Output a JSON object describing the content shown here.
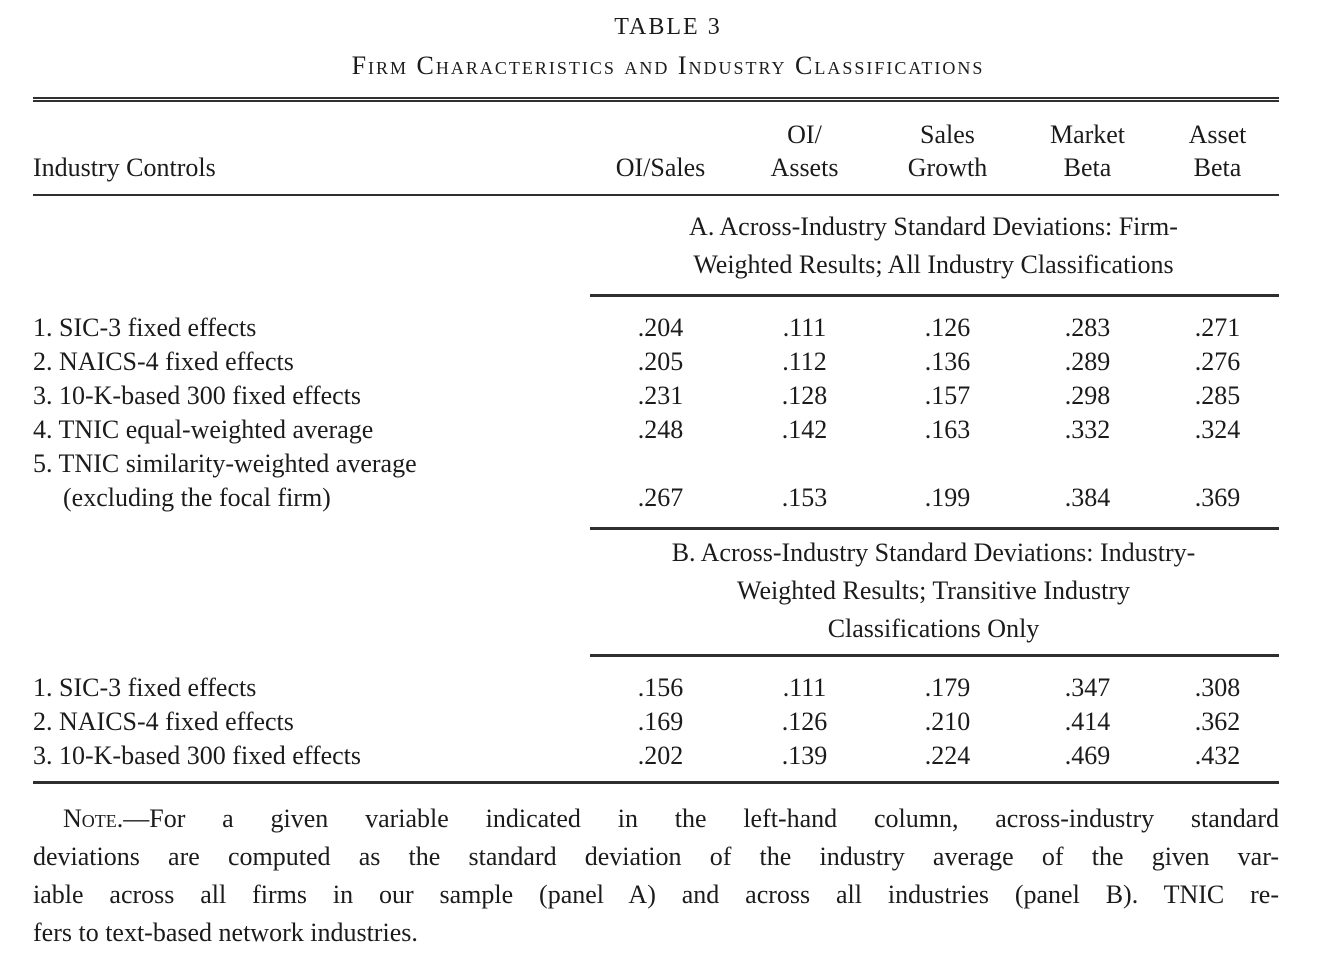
{
  "title": {
    "line1": "TABLE 3",
    "line2": "Firm Characteristics and Industry Classifications"
  },
  "columns": {
    "stub": "Industry Controls",
    "headers": [
      {
        "line1": "",
        "line2": "OI/Sales"
      },
      {
        "line1": "OI/",
        "line2": "Assets"
      },
      {
        "line1": "Sales",
        "line2": "Growth"
      },
      {
        "line1": "Market",
        "line2": "Beta"
      },
      {
        "line1": "Asset",
        "line2": "Beta"
      }
    ]
  },
  "panels": [
    {
      "id": "A",
      "heading_lines": [
        "A. Across-Industry Standard Deviations: Firm-",
        "Weighted Results; All Industry Classifications"
      ],
      "rows": [
        {
          "label": "1. SIC-3 fixed effects",
          "values": [
            ".204",
            ".111",
            ".126",
            ".283",
            ".271"
          ]
        },
        {
          "label": "2. NAICS-4 fixed effects",
          "values": [
            ".205",
            ".112",
            ".136",
            ".289",
            ".276"
          ]
        },
        {
          "label": "3. 10-K-based 300 fixed effects",
          "values": [
            ".231",
            ".128",
            ".157",
            ".298",
            ".285"
          ]
        },
        {
          "label": "4. TNIC equal-weighted average",
          "values": [
            ".248",
            ".142",
            ".163",
            ".332",
            ".324"
          ]
        },
        {
          "label": "5. TNIC similarity-weighted average",
          "label_line2": "(excluding the focal firm)",
          "values": [
            ".267",
            ".153",
            ".199",
            ".384",
            ".369"
          ]
        }
      ]
    },
    {
      "id": "B",
      "heading_lines": [
        "B. Across-Industry Standard Deviations: Industry-",
        "Weighted Results; Transitive Industry",
        "Classifications Only"
      ],
      "rows": [
        {
          "label": "1. SIC-3 fixed effects",
          "values": [
            ".156",
            ".111",
            ".179",
            ".347",
            ".308"
          ]
        },
        {
          "label": "2. NAICS-4 fixed effects",
          "values": [
            ".169",
            ".126",
            ".210",
            ".414",
            ".362"
          ]
        },
        {
          "label": "3. 10-K-based 300 fixed effects",
          "values": [
            ".202",
            ".139",
            ".224",
            ".469",
            ".432"
          ]
        }
      ]
    }
  ],
  "note": {
    "label": "Note.",
    "lines": [
      "—For a given variable indicated in the left-hand column, across-industry standard",
      "deviations are computed as the standard deviation of the industry average of the given var-",
      "iable across all firms in our sample (panel A) and across all industries (panel B). TNIC re-",
      "fers to text-based network industries."
    ]
  },
  "colors": {
    "background": "#ffffff",
    "text": "#1b1b1b",
    "rule": "#2f2f2f"
  }
}
